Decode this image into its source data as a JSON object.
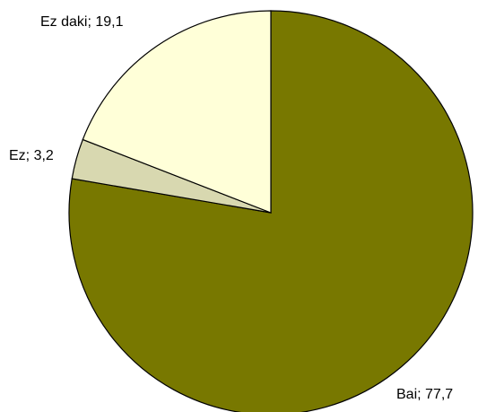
{
  "chart_data": {
    "type": "pie",
    "title": "",
    "label_separator": "; ",
    "slices": [
      {
        "label": "Bai",
        "value": 77.7,
        "value_text": "77,7",
        "color": "#787800"
      },
      {
        "label": "Ez",
        "value": 3.2,
        "value_text": "3,2",
        "color": "#d8d8b0"
      },
      {
        "label": "Ez daki",
        "value": 19.1,
        "value_text": "19,1",
        "color": "#ffffd8"
      }
    ],
    "start_angle": "12 o'clock",
    "direction": "clockwise",
    "legend": "none"
  }
}
